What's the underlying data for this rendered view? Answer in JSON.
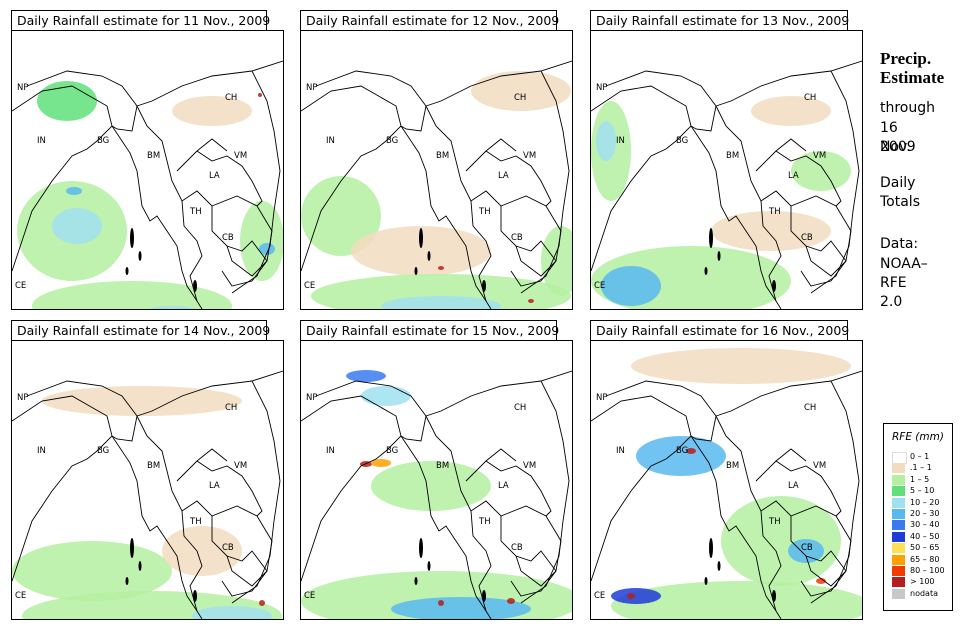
{
  "panels": [
    {
      "title": "Daily Rainfall estimate for  11 Nov., 2009"
    },
    {
      "title": "Daily Rainfall estimate for  12 Nov., 2009"
    },
    {
      "title": "Daily Rainfall estimate for  13 Nov., 2009"
    },
    {
      "title": "Daily Rainfall estimate for  14 Nov., 2009"
    },
    {
      "title": "Daily Rainfall estimate for  15 Nov., 2009"
    },
    {
      "title": "Daily Rainfall estimate for  16 Nov., 2009"
    }
  ],
  "country_labels": {
    "np": "NP",
    "ch": "CH",
    "bg": "BG",
    "in": "IN",
    "bm": "BM",
    "vm": "VM",
    "la": "LA",
    "th": "TH",
    "cb": "CB",
    "ce": "CE"
  },
  "side": {
    "title_line1": "Precip.",
    "title_line2": "Estimate",
    "through": "through",
    "date_line1": "16 Nov.",
    "date_line2": "2009",
    "daily1": "Daily",
    "daily2": "Totals",
    "data1": "Data:",
    "data2": "NOAA–",
    "data3": "RFE 2.0"
  },
  "legend": {
    "title": "RFE (mm)",
    "items": [
      {
        "label": "0 – 1",
        "color": "#ffffff"
      },
      {
        "label": ".1 – 1",
        "color": "#f2dcc0"
      },
      {
        "label": "1 – 5",
        "color": "#b4f0a0"
      },
      {
        "label": "5 – 10",
        "color": "#5fe07a"
      },
      {
        "label": "10 – 20",
        "color": "#a0e0f0"
      },
      {
        "label": "20 – 30",
        "color": "#58b8f0"
      },
      {
        "label": "30 – 40",
        "color": "#3a7af0"
      },
      {
        "label": "40 – 50",
        "color": "#1e3cd8"
      },
      {
        "label": "50 – 65",
        "color": "#ffe050"
      },
      {
        "label": "65 – 80",
        "color": "#ffa000"
      },
      {
        "label": "80 – 100",
        "color": "#f03c00"
      },
      {
        "label": "> 100",
        "color": "#b41e1e"
      },
      {
        "label": "nodata",
        "color": "#c8c8c8"
      }
    ]
  },
  "rain_fields": [
    [
      {
        "cls": 2,
        "cx": 60,
        "cy": 200,
        "rx": 55,
        "ry": 50
      },
      {
        "cls": 4,
        "cx": 65,
        "cy": 195,
        "rx": 25,
        "ry": 18
      },
      {
        "cls": 5,
        "cx": 62,
        "cy": 160,
        "rx": 8,
        "ry": 4
      },
      {
        "cls": 2,
        "cx": 120,
        "cy": 275,
        "rx": 100,
        "ry": 25
      },
      {
        "cls": 4,
        "cx": 160,
        "cy": 283,
        "rx": 30,
        "ry": 8
      },
      {
        "cls": 3,
        "cx": 55,
        "cy": 70,
        "rx": 30,
        "ry": 20
      },
      {
        "cls": 2,
        "cx": 250,
        "cy": 210,
        "rx": 22,
        "ry": 40
      },
      {
        "cls": 5,
        "cx": 255,
        "cy": 218,
        "rx": 8,
        "ry": 6
      },
      {
        "cls": 1,
        "cx": 200,
        "cy": 80,
        "rx": 40,
        "ry": 15
      },
      {
        "cls": 11,
        "cx": 248,
        "cy": 64,
        "rx": 2,
        "ry": 2
      }
    ],
    [
      {
        "cls": 2,
        "cx": 40,
        "cy": 185,
        "rx": 40,
        "ry": 40
      },
      {
        "cls": 1,
        "cx": 120,
        "cy": 220,
        "rx": 70,
        "ry": 25
      },
      {
        "cls": 2,
        "cx": 140,
        "cy": 265,
        "rx": 130,
        "ry": 22
      },
      {
        "cls": 4,
        "cx": 140,
        "cy": 275,
        "rx": 60,
        "ry": 10
      },
      {
        "cls": 11,
        "cx": 140,
        "cy": 237,
        "rx": 3,
        "ry": 2
      },
      {
        "cls": 11,
        "cx": 230,
        "cy": 270,
        "rx": 3,
        "ry": 2
      },
      {
        "cls": 1,
        "cx": 220,
        "cy": 60,
        "rx": 50,
        "ry": 20
      },
      {
        "cls": 2,
        "cx": 260,
        "cy": 230,
        "rx": 20,
        "ry": 35
      }
    ],
    [
      {
        "cls": 2,
        "cx": 20,
        "cy": 120,
        "rx": 20,
        "ry": 50
      },
      {
        "cls": 4,
        "cx": 15,
        "cy": 110,
        "rx": 10,
        "ry": 20
      },
      {
        "cls": 2,
        "cx": 100,
        "cy": 250,
        "rx": 100,
        "ry": 35
      },
      {
        "cls": 5,
        "cx": 40,
        "cy": 255,
        "rx": 30,
        "ry": 20
      },
      {
        "cls": 1,
        "cx": 180,
        "cy": 200,
        "rx": 60,
        "ry": 20
      },
      {
        "cls": 2,
        "cx": 230,
        "cy": 140,
        "rx": 30,
        "ry": 20
      },
      {
        "cls": 1,
        "cx": 200,
        "cy": 80,
        "rx": 40,
        "ry": 15
      }
    ],
    [
      {
        "cls": 1,
        "cx": 130,
        "cy": 60,
        "rx": 100,
        "ry": 15
      },
      {
        "cls": 2,
        "cx": 80,
        "cy": 230,
        "rx": 80,
        "ry": 30
      },
      {
        "cls": 2,
        "cx": 140,
        "cy": 275,
        "rx": 130,
        "ry": 25
      },
      {
        "cls": 4,
        "cx": 220,
        "cy": 275,
        "rx": 40,
        "ry": 10
      },
      {
        "cls": 11,
        "cx": 250,
        "cy": 262,
        "rx": 3,
        "ry": 3
      },
      {
        "cls": 1,
        "cx": 190,
        "cy": 210,
        "rx": 40,
        "ry": 25
      }
    ],
    [
      {
        "cls": 6,
        "cx": 65,
        "cy": 35,
        "rx": 20,
        "ry": 6
      },
      {
        "cls": 4,
        "cx": 85,
        "cy": 55,
        "rx": 25,
        "ry": 10
      },
      {
        "cls": 11,
        "cx": 65,
        "cy": 123,
        "rx": 6,
        "ry": 3
      },
      {
        "cls": 9,
        "cx": 80,
        "cy": 122,
        "rx": 10,
        "ry": 4
      },
      {
        "cls": 2,
        "cx": 130,
        "cy": 145,
        "rx": 60,
        "ry": 25
      },
      {
        "cls": 2,
        "cx": 140,
        "cy": 260,
        "rx": 140,
        "ry": 30
      },
      {
        "cls": 5,
        "cx": 160,
        "cy": 268,
        "rx": 70,
        "ry": 12
      },
      {
        "cls": 11,
        "cx": 210,
        "cy": 260,
        "rx": 4,
        "ry": 3
      },
      {
        "cls": 11,
        "cx": 140,
        "cy": 262,
        "rx": 3,
        "ry": 3
      }
    ],
    [
      {
        "cls": 1,
        "cx": 150,
        "cy": 25,
        "rx": 110,
        "ry": 18
      },
      {
        "cls": 5,
        "cx": 90,
        "cy": 115,
        "rx": 45,
        "ry": 20
      },
      {
        "cls": 11,
        "cx": 100,
        "cy": 110,
        "rx": 5,
        "ry": 3
      },
      {
        "cls": 2,
        "cx": 190,
        "cy": 200,
        "rx": 60,
        "ry": 45
      },
      {
        "cls": 5,
        "cx": 215,
        "cy": 210,
        "rx": 18,
        "ry": 12
      },
      {
        "cls": 2,
        "cx": 150,
        "cy": 265,
        "rx": 130,
        "ry": 25
      },
      {
        "cls": 7,
        "cx": 45,
        "cy": 255,
        "rx": 25,
        "ry": 8
      },
      {
        "cls": 11,
        "cx": 40,
        "cy": 255,
        "rx": 4,
        "ry": 3
      },
      {
        "cls": 10,
        "cx": 230,
        "cy": 240,
        "rx": 5,
        "ry": 3
      }
    ]
  ]
}
